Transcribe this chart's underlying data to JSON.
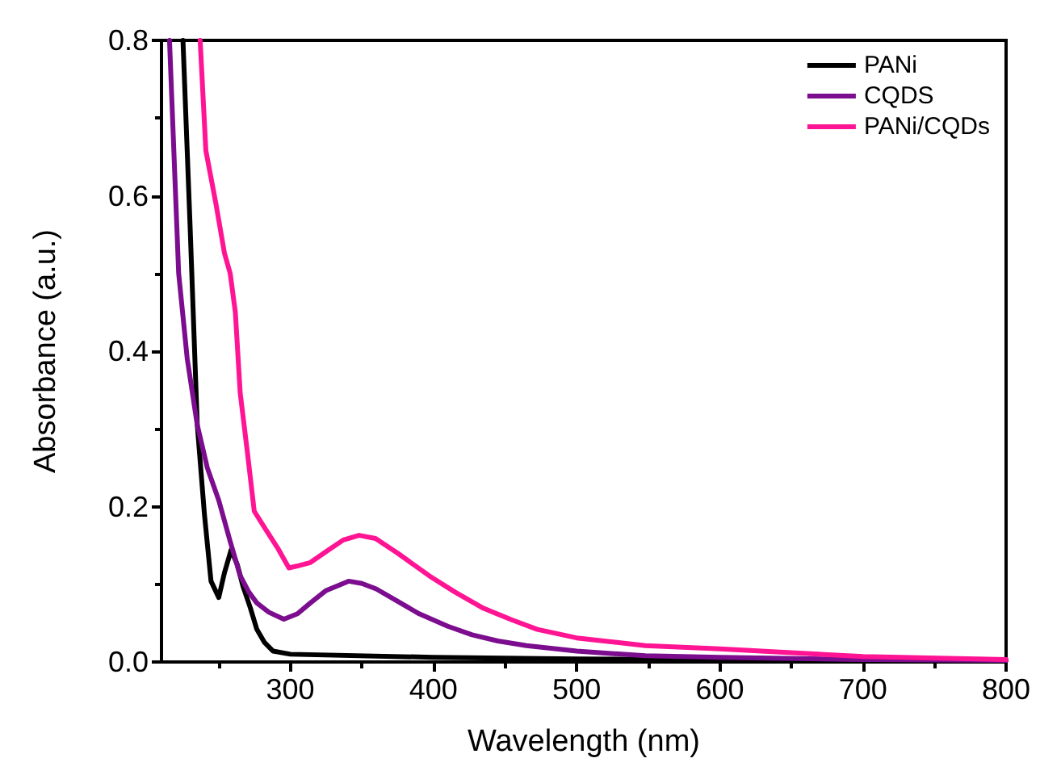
{
  "chart_data": {
    "type": "line",
    "xlabel": "Wavelength (nm)",
    "ylabel": "Absorbance (a.u.)",
    "xlim": [
      210,
      800
    ],
    "xticks": [
      300,
      400,
      500,
      600,
      700,
      800
    ],
    "ylim": [
      0,
      0.8
    ],
    "yticks": [
      {
        "value": 0,
        "label": "0.0"
      },
      0.2,
      0.4,
      0.6,
      0.8
    ],
    "grid": false,
    "legend": "top right",
    "marker": "none",
    "line_style": "solid",
    "series": [
      {
        "name": "PANi",
        "color": "#000000",
        "x": [
          225,
          230,
          235,
          240,
          244.6,
          250,
          254,
          258.6,
          263,
          267,
          272,
          276.6,
          282,
          288,
          300,
          400,
          500,
          600,
          800
        ],
        "values": [
          0.8,
          0.56,
          0.305,
          0.19,
          0.104,
          0.083,
          0.115,
          0.144,
          0.125,
          0.097,
          0.07,
          0.042,
          0.025,
          0.014,
          0.01,
          0.006,
          0.004,
          0.003,
          0.002
        ]
      },
      {
        "name": "CQDS",
        "color": "#7b0d8e",
        "x": [
          215.6,
          222,
          228,
          235,
          242,
          250,
          258,
          265,
          271,
          276.6,
          285,
          295.5,
          305,
          314,
          325,
          340.7,
          350,
          360,
          375,
          390,
          410,
          427,
          445,
          465,
          500,
          548,
          600,
          700,
          800
        ],
        "values": [
          0.8,
          0.5,
          0.39,
          0.305,
          0.25,
          0.208,
          0.155,
          0.111,
          0.09,
          0.076,
          0.064,
          0.055,
          0.062,
          0.076,
          0.092,
          0.104,
          0.101,
          0.094,
          0.078,
          0.062,
          0.046,
          0.035,
          0.027,
          0.021,
          0.014,
          0.008,
          0.006,
          0.003,
          0.002
        ]
      },
      {
        "name": "PANi/CQDs",
        "color": "#ff1493",
        "x": [
          237,
          241,
          248,
          254,
          258,
          261.6,
          265,
          270,
          274.8,
          283,
          291.7,
          299,
          306,
          314,
          325,
          337,
          348,
          359.5,
          375,
          397,
          415,
          435,
          455,
          472.5,
          500,
          548,
          600,
          650,
          700,
          800
        ],
        "values": [
          0.8,
          0.658,
          0.59,
          0.526,
          0.5,
          0.45,
          0.346,
          0.27,
          0.194,
          0.17,
          0.145,
          0.121,
          0.124,
          0.128,
          0.142,
          0.157,
          0.163,
          0.159,
          0.14,
          0.111,
          0.09,
          0.069,
          0.054,
          0.042,
          0.031,
          0.021,
          0.017,
          0.012,
          0.007,
          0.003
        ]
      }
    ]
  }
}
